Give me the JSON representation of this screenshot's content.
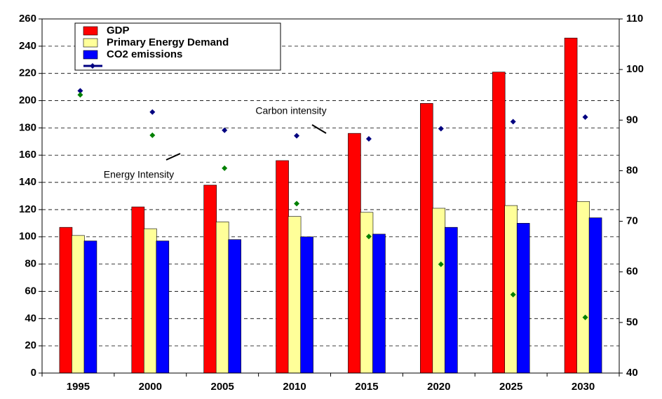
{
  "chart_data": {
    "type": "bar_line",
    "categories": [
      "1995",
      "2000",
      "2005",
      "2010",
      "2015",
      "2020",
      "2025",
      "2030"
    ],
    "series": [
      {
        "name": "GDP",
        "color": "#ff0000",
        "type": "bar",
        "values": [
          107,
          122,
          138,
          156,
          176,
          198,
          221,
          246
        ]
      },
      {
        "name": "Primary Energy Demand",
        "color": "#ffff99",
        "type": "bar",
        "values": [
          101,
          106,
          111,
          115,
          118,
          121,
          123,
          126
        ]
      },
      {
        "name": "CO2 emissions",
        "color": "#0000ff",
        "type": "bar",
        "values": [
          97,
          97,
          98,
          100,
          102,
          107,
          110,
          114
        ]
      },
      {
        "name": "Carbon intensity",
        "color": "#000080",
        "type": "line",
        "axis": "y2",
        "values": [
          95.8,
          91.6,
          88.0,
          86.9,
          86.3,
          88.3,
          89.7,
          90.6
        ]
      },
      {
        "name": "Energy Intensity",
        "color": "#008000",
        "type": "line",
        "axis": "y2",
        "values": [
          95,
          87,
          80.5,
          73.5,
          67,
          61.5,
          55.5,
          51
        ]
      }
    ],
    "ylim": [
      0,
      260
    ],
    "yticks": [
      0,
      20,
      40,
      60,
      80,
      100,
      120,
      140,
      160,
      180,
      200,
      220,
      240,
      260
    ],
    "y2lim": [
      40,
      110
    ],
    "y2ticks": [
      40,
      50,
      60,
      70,
      80,
      90,
      100,
      110
    ],
    "grid": true,
    "legend": "top-left"
  }
}
